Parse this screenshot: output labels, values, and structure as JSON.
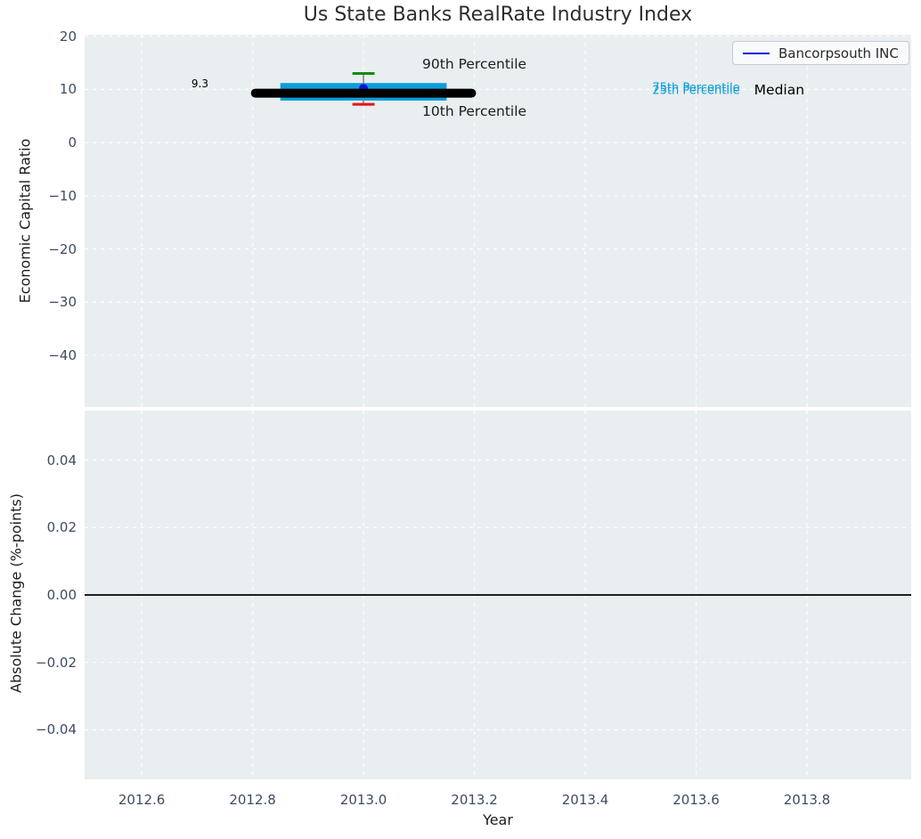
{
  "title": "Us State Banks RealRate Industry Index",
  "legend": {
    "label": "Bancorpsouth INC",
    "line_color": "#0f0fe0"
  },
  "chart_data": {
    "type": "box",
    "title": "Us State Banks RealRate Industry Index",
    "x_axis": {
      "label": "Year",
      "lim": [
        2012.497,
        2013.988
      ],
      "ticks": [
        2012.6,
        2012.8,
        2013.0,
        2013.2,
        2013.4,
        2013.6,
        2013.8
      ],
      "tick_labels": [
        "2012.6",
        "2012.8",
        "2013.0",
        "2013.2",
        "2013.4",
        "2013.6",
        "2013.8"
      ],
      "grid": true
    },
    "top": {
      "ylabel": "Economic Capital Ratio",
      "ylim": [
        -49.72,
        20.28
      ],
      "ticks": [
        20,
        10,
        0,
        -10,
        -20,
        -30,
        -40
      ],
      "tick_labels": [
        "20",
        "10",
        "0",
        "−10",
        "−20",
        "−30",
        "−40"
      ],
      "grid": true,
      "box": {
        "x": 2013.0,
        "median": 9.3,
        "q1": 7.9,
        "q3": 11.2,
        "p10": 7.2,
        "p90": 13.0,
        "median_halfwidth": 0.195,
        "box_halfwidth": 0.15,
        "cap_halfwidth": 0.02,
        "colors": {
          "box": "#0d9ed9",
          "median": "#000000",
          "p90_cap": "#0e8c0e",
          "p10_cap": "#e81212",
          "whisker": "#808080"
        }
      },
      "company_point": {
        "name": "Bancorpsouth INC",
        "x": 2013.0,
        "y": 10.2,
        "color": "#0f0fe0"
      },
      "annotations": [
        {
          "text": "9.3",
          "x": 2012.705,
          "y": 11.1,
          "size": 12,
          "color": "#000000"
        },
        {
          "text": "90th Percentile",
          "x": 2013.2,
          "y": 14.75,
          "size": 15.5,
          "color": "#1c1c1c"
        },
        {
          "text": "10th Percentile",
          "x": 2013.2,
          "y": 5.85,
          "size": 15.5,
          "color": "#1c1c1c"
        },
        {
          "text": "75th Percentile",
          "x": 2013.6,
          "y": 10.15,
          "size": 13,
          "color": "#0d9ed9"
        },
        {
          "text": "25th Percentile",
          "x": 2013.6,
          "y": 9.7,
          "size": 13,
          "color": "#0d9ed9"
        },
        {
          "text": "Median",
          "x": 2013.75,
          "y": 9.85,
          "size": 15.5,
          "color": "#000000"
        }
      ]
    },
    "bottom": {
      "ylabel": "Absolute Change (%-points)",
      "ylim": [
        -0.0547,
        0.0547
      ],
      "ticks": [
        0.04,
        0.02,
        0.0,
        -0.02,
        -0.04
      ],
      "tick_labels": [
        "0.04",
        "0.02",
        "0.00",
        "−0.02",
        "−0.04"
      ],
      "grid": true,
      "zero_line": {
        "y": 0.0,
        "color": "#000000"
      }
    },
    "style": {
      "plot_bg": "#e9eef0",
      "grid_color": "#ffffff",
      "tick_color": "#3d4c63",
      "label_color": "#1c1c1c",
      "title_color": "#2d2d2d"
    }
  }
}
